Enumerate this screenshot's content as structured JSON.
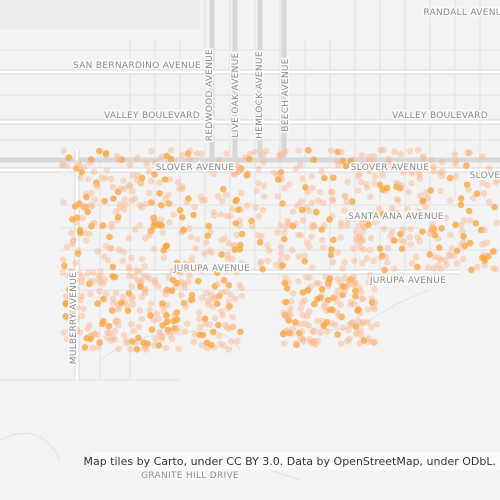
{
  "map": {
    "labels": [
      "RANDALL AVENUE",
      "SAN BERNARDINO AVENUE",
      "REDWOOD AVENUE",
      "LIVE OAK AVENUE",
      "HEMLOCK AVENUE",
      "BEECH AVENUE",
      "VALLEY BOULEVARD",
      "VALLEY BOULEVARD",
      "SLOVER AVENUE",
      "SLOVER AVENUE",
      "SLOVE",
      "SANTA ANA AVENUE",
      "JURUPA AVENUE",
      "JURUPA AVENUE",
      "MULBERRY AVENUE",
      "GRANITE HILL DRIVE"
    ],
    "attribution": "Map tiles by Carto, under CC BY 3.0. Data by OpenStreetMap, under ODbL."
  }
}
